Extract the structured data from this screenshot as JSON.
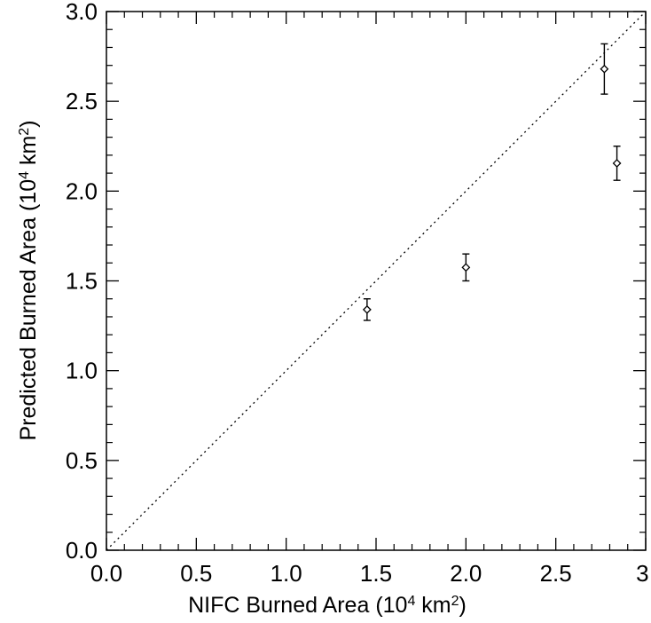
{
  "chart_data": {
    "type": "scatter",
    "title": "",
    "xlabel": {
      "main": "NIFC Burned Area (10",
      "exp": "4",
      "mid": " km",
      "exp2": "2",
      "end": ")"
    },
    "ylabel": {
      "main": "Predicted Burned Area (10",
      "exp": "4",
      "mid": " km",
      "exp2": "2",
      "end": ")"
    },
    "xlim": [
      0.0,
      3.0
    ],
    "ylim": [
      0.0,
      3.0
    ],
    "x_ticks": [
      {
        "value": 0.0,
        "label": "0.0"
      },
      {
        "value": 0.5,
        "label": "0.5"
      },
      {
        "value": 1.0,
        "label": "1.0"
      },
      {
        "value": 1.5,
        "label": "1.5"
      },
      {
        "value": 2.0,
        "label": "2.0"
      },
      {
        "value": 2.5,
        "label": "2.5"
      },
      {
        "value": 3.0,
        "label": "3."
      }
    ],
    "y_ticks": [
      {
        "value": 0.0,
        "label": "0.0"
      },
      {
        "value": 0.5,
        "label": "0.5"
      },
      {
        "value": 1.0,
        "label": "1.0"
      },
      {
        "value": 1.5,
        "label": "1.5"
      },
      {
        "value": 2.0,
        "label": "2.0"
      },
      {
        "value": 2.5,
        "label": "2.5"
      },
      {
        "value": 3.0,
        "label": "3.0"
      }
    ],
    "minor_step": 0.1,
    "reference_line": {
      "style": "dotted",
      "from": [
        0,
        0
      ],
      "to": [
        3,
        3
      ]
    },
    "marker": "diamond",
    "grid": false,
    "points": [
      {
        "x": 1.45,
        "y": 1.34,
        "err_low": 1.28,
        "err_high": 1.4
      },
      {
        "x": 2.0,
        "y": 1.575,
        "err_low": 1.5,
        "err_high": 1.65
      },
      {
        "x": 2.77,
        "y": 2.68,
        "err_low": 2.54,
        "err_high": 2.82
      },
      {
        "x": 2.84,
        "y": 2.155,
        "err_low": 2.06,
        "err_high": 2.25
      }
    ]
  }
}
